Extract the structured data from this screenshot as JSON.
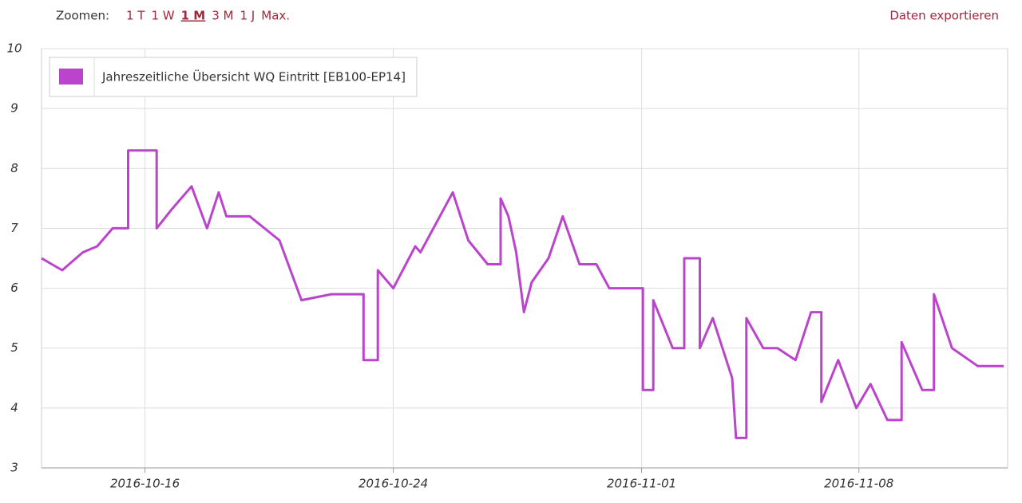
{
  "toolbar": {
    "zoom_label": "Zoomen:",
    "zoom_options": [
      "1 T",
      "1 W",
      "1 M",
      "3 M",
      "1 J",
      "Max."
    ],
    "selected_zoom_index": 2,
    "export": "Daten exportieren"
  },
  "chart_data": {
    "type": "line",
    "x": [
      "2016-10-12T16:00",
      "2016-10-13T08:00",
      "2016-10-14T00:00",
      "2016-10-14T11:00",
      "2016-10-14T23:00",
      "2016-10-15T11:00",
      "2016-10-15T11:00",
      "2016-10-16T09:00",
      "2016-10-16T09:00",
      "2016-10-16T20:00",
      "2016-10-17T12:00",
      "2016-10-18T00:00",
      "2016-10-18T09:00",
      "2016-10-18T15:00",
      "2016-10-19T09:00",
      "2016-10-20T08:00",
      "2016-10-21T01:00",
      "2016-10-22T00:00",
      "2016-10-23T01:00",
      "2016-10-23T01:00",
      "2016-10-23T12:00",
      "2016-10-23T12:00",
      "2016-10-24T00:00",
      "2016-10-24T17:00",
      "2016-10-24T21:00",
      "2016-10-25T22:00",
      "2016-10-26T10:00",
      "2016-10-27T01:00",
      "2016-10-27T11:00",
      "2016-10-27T11:00",
      "2016-10-27T17:00",
      "2016-10-27T23:00",
      "2016-10-28T05:00",
      "2016-10-28T11:00",
      "2016-10-29T00:00",
      "2016-10-29T11:00",
      "2016-10-30T00:00",
      "2016-10-30T13:00",
      "2016-10-30T23:00",
      "2016-11-01T01:00",
      "2016-11-01T01:00",
      "2016-11-01T09:00",
      "2016-11-01T09:00",
      "2016-11-02T00:00",
      "2016-11-02T09:00",
      "2016-11-02T09:00",
      "2016-11-02T21:00",
      "2016-11-02T21:00",
      "2016-11-03T07:00",
      "2016-11-03T22:00",
      "2016-11-04T01:00",
      "2016-11-04T09:00",
      "2016-11-04T09:00",
      "2016-11-04T22:00",
      "2016-11-05T09:00",
      "2016-11-05T23:00",
      "2016-11-06T11:00",
      "2016-11-06T19:00",
      "2016-11-06T19:00",
      "2016-11-07T08:00",
      "2016-11-07T22:00",
      "2016-11-08T09:00",
      "2016-11-08T22:00",
      "2016-11-09T09:00",
      "2016-11-09T09:00",
      "2016-11-10T01:00",
      "2016-11-10T10:00",
      "2016-11-10T10:00",
      "2016-11-11T00:00",
      "2016-11-11T20:00",
      "2016-11-12T16:00"
    ],
    "series": [
      {
        "name": "Jahreszeitliche Übersicht WQ Eintritt [EB100-EP14]",
        "color": "#bb44cc",
        "values": [
          6.5,
          6.3,
          6.6,
          6.7,
          7.0,
          7.0,
          8.3,
          8.3,
          7.0,
          7.3,
          7.7,
          7.0,
          7.6,
          7.2,
          7.2,
          6.8,
          5.8,
          5.9,
          5.9,
          4.8,
          4.8,
          6.3,
          6.0,
          6.7,
          6.6,
          7.6,
          6.8,
          6.4,
          6.4,
          7.5,
          7.2,
          6.6,
          5.6,
          6.1,
          6.5,
          7.2,
          6.4,
          6.4,
          6.0,
          6.0,
          4.3,
          4.3,
          5.8,
          5.0,
          5.0,
          6.5,
          6.5,
          5.0,
          5.5,
          4.5,
          3.5,
          3.5,
          5.5,
          5.0,
          5.0,
          4.8,
          5.6,
          5.6,
          4.1,
          4.8,
          4.0,
          4.4,
          3.8,
          3.8,
          5.1,
          4.3,
          4.3,
          5.9,
          5.0,
          4.7,
          4.7
        ]
      }
    ],
    "xlim": [
      "2016-10-12T16:00",
      "2016-11-12T19:00"
    ],
    "xticks": [
      "2016-10-16",
      "2016-10-24",
      "2016-11-01",
      "2016-11-08"
    ],
    "ylim": [
      3,
      10
    ],
    "yticks": [
      3,
      4,
      5,
      6,
      7,
      8,
      9,
      10
    ],
    "grid": true,
    "legend": "top-left"
  }
}
